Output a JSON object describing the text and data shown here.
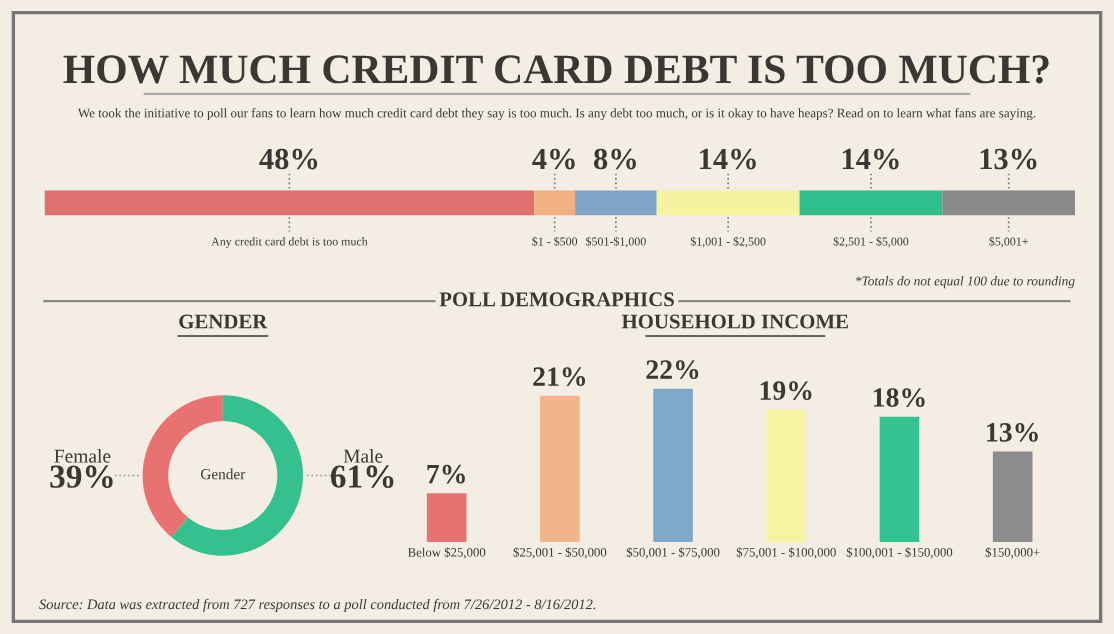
{
  "chart_data": [
    {
      "type": "bar",
      "orientation": "horizontal",
      "stacked": true,
      "title": "HOW MUCH CREDIT CARD DEBT IS TOO MUCH?",
      "subtitle": "We took the initiative to poll our fans to learn how much credit card debt they say is too much. Is any debt too much, or is it okay to have heaps? Read on to learn what fans are saying.",
      "categories": [
        null
      ],
      "series": [
        {
          "name": "Any credit card debt is too much",
          "color": "#e07070",
          "values": [
            48
          ],
          "value_labels": [
            "48%"
          ]
        },
        {
          "name": "$1 - $500",
          "color": "#f0b080",
          "values": [
            4
          ],
          "value_labels": [
            "4%"
          ]
        },
        {
          "name": "$501-$1,000",
          "color": "#7fa6c8",
          "values": [
            8
          ],
          "value_labels": [
            "8%"
          ]
        },
        {
          "name": "$1,001 - $2,500",
          "color": "#f5f3a0",
          "values": [
            14
          ],
          "value_labels": [
            "14%"
          ]
        },
        {
          "name": "$2,501 - $5,000",
          "color": "#2fbf8c",
          "values": [
            14
          ],
          "value_labels": [
            "14%"
          ]
        },
        {
          "name": "$5,001+",
          "color": "#8a8a8a",
          "values": [
            13
          ],
          "value_labels": [
            "13%"
          ]
        }
      ],
      "annotations": [
        "*Totals do not equal 100 due to rounding",
        "POLL DEMOGRAPHICS"
      ]
    },
    {
      "type": "donut",
      "title": "GENDER",
      "categories": [
        "Female",
        "Male"
      ],
      "values": [
        39,
        61
      ],
      "colors": [
        "#e87272",
        "#34c08f"
      ],
      "value_labels": [
        "39%",
        "61%"
      ],
      "annotations": [
        "Gender"
      ]
    },
    {
      "type": "bar",
      "title": "HOUSEHOLD INCOME",
      "categories": [
        "Below $25,000",
        "$25,001 - $50,000",
        "$50,001 - $75,000",
        "$75,001 - $100,000",
        "$100,001 - $150,000",
        "$150,000+"
      ],
      "values": [
        7,
        21,
        22,
        19,
        18,
        13
      ],
      "colors": [
        "#e87272",
        "#f2b48a",
        "#80a8c8",
        "#f6f3a2",
        "#33c290",
        "#8c8c8c"
      ],
      "value_labels": [
        "7%",
        "21%",
        "22%",
        "19%",
        "18%",
        "13%"
      ],
      "annotations": [
        "Source: Data was extracted from 727 responses to a poll conducted from 7/26/2012 - 8/16/2012."
      ]
    }
  ]
}
